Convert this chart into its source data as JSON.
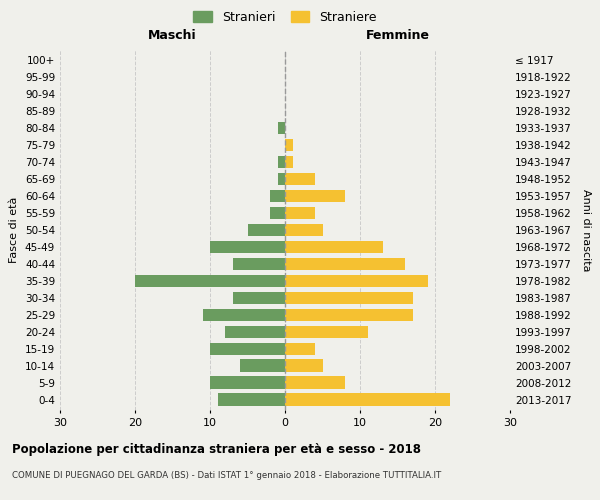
{
  "age_groups": [
    "0-4",
    "5-9",
    "10-14",
    "15-19",
    "20-24",
    "25-29",
    "30-34",
    "35-39",
    "40-44",
    "45-49",
    "50-54",
    "55-59",
    "60-64",
    "65-69",
    "70-74",
    "75-79",
    "80-84",
    "85-89",
    "90-94",
    "95-99",
    "100+"
  ],
  "birth_years": [
    "2013-2017",
    "2008-2012",
    "2003-2007",
    "1998-2002",
    "1993-1997",
    "1988-1992",
    "1983-1987",
    "1978-1982",
    "1973-1977",
    "1968-1972",
    "1963-1967",
    "1958-1962",
    "1953-1957",
    "1948-1952",
    "1943-1947",
    "1938-1942",
    "1933-1937",
    "1928-1932",
    "1923-1927",
    "1918-1922",
    "≤ 1917"
  ],
  "maschi": [
    9,
    10,
    6,
    10,
    8,
    11,
    7,
    20,
    7,
    10,
    5,
    2,
    2,
    1,
    1,
    0,
    1,
    0,
    0,
    0,
    0
  ],
  "femmine": [
    22,
    8,
    5,
    4,
    11,
    17,
    17,
    19,
    16,
    13,
    5,
    4,
    8,
    4,
    1,
    1,
    0,
    0,
    0,
    0,
    0
  ],
  "color_maschi": "#6a9c5f",
  "color_femmine": "#f5c131",
  "background_color": "#f0f0eb",
  "grid_color": "#cccccc",
  "title": "Popolazione per cittadinanza straniera per età e sesso - 2018",
  "subtitle": "COMUNE DI PUEGNAGO DEL GARDA (BS) - Dati ISTAT 1° gennaio 2018 - Elaborazione TUTTITALIA.IT",
  "xlabel_maschi": "Maschi",
  "xlabel_femmine": "Femmine",
  "ylabel": "Fasce di età",
  "ylabel_right": "Anni di nascita",
  "legend_maschi": "Stranieri",
  "legend_femmine": "Straniere",
  "xlim": 30
}
